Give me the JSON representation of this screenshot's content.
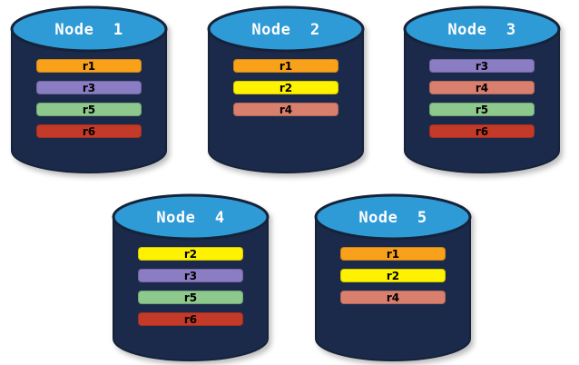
{
  "diagram": {
    "background_color": "#FFFFFF",
    "cylinder_body_color": "#1B2A4A",
    "cylinder_top_color": "#2E9AD6",
    "cylinder_outline_color": "#152238",
    "title_text_color": "#FFFFFF",
    "bar_text_color": "#000000"
  },
  "replica_colors": {
    "r1": "#F9A11B",
    "r2": "#FEF200",
    "r3": "#8B7DC3",
    "r4": "#D97F6E",
    "r5": "#8DC88D",
    "r6": "#C43A28"
  },
  "nodes": [
    {
      "title": "Node  1",
      "replicas": [
        "r1",
        "r3",
        "r5",
        "r6"
      ]
    },
    {
      "title": "Node  2",
      "replicas": [
        "r1",
        "r2",
        "r4"
      ]
    },
    {
      "title": "Node  3",
      "replicas": [
        "r3",
        "r4",
        "r5",
        "r6"
      ]
    },
    {
      "title": "Node  4",
      "replicas": [
        "r2",
        "r3",
        "r5",
        "r6"
      ]
    },
    {
      "title": "Node  5",
      "replicas": [
        "r1",
        "r2",
        "r4"
      ]
    }
  ]
}
